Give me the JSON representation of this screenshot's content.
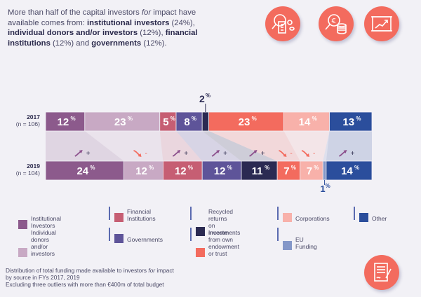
{
  "intro": {
    "parts": [
      {
        "text": "More than half of the capital investors ",
        "style": "normal"
      },
      {
        "text": "for",
        "style": "italic"
      },
      {
        "text": " impact have available comes from: ",
        "style": "normal"
      },
      {
        "text": "institutional investors",
        "style": "bold"
      },
      {
        "text": " (24%), ",
        "style": "normal"
      },
      {
        "text": "individual donors and/or investors",
        "style": "bold"
      },
      {
        "text": " (12%), ",
        "style": "normal"
      },
      {
        "text": "financial institutions",
        "style": "bold"
      },
      {
        "text": " (12%) and ",
        "style": "normal"
      },
      {
        "text": "governments",
        "style": "bold"
      },
      {
        "text": " (12%).",
        "style": "normal"
      }
    ]
  },
  "icons": [
    "magnifier-building-icon",
    "euro-coins-magnifier-icon",
    "chart-growth-board-icon",
    "signed-document-icon"
  ],
  "colors": {
    "background": "#f2f1f6",
    "accent": "#f36b5e",
    "up_arrow": "#8b4f8c",
    "down_arrow": "#f36b5e"
  },
  "chart_data": {
    "type": "bar",
    "orientation": "horizontal-stacked-100",
    "title": "",
    "rows": [
      {
        "label": "2017",
        "sublabel": "(n = 106)"
      },
      {
        "label": "2019",
        "sublabel": "(n = 104)"
      }
    ],
    "series": [
      {
        "name": "Institutional Investors",
        "color": "#8c5a8c",
        "values": [
          12,
          24
        ],
        "change": "+"
      },
      {
        "name": "Individual donors and/or investors",
        "color": "#c8a9c4",
        "values": [
          23,
          12
        ],
        "change": "-"
      },
      {
        "name": "Financial Institutions",
        "color": "#c65e73",
        "values": [
          5,
          12
        ],
        "change": "+"
      },
      {
        "name": "Governments",
        "color": "#5e5499",
        "values": [
          8,
          12
        ],
        "change": "+"
      },
      {
        "name": "Recycled returns on investments",
        "color": "#2b2a52",
        "values": [
          2,
          11
        ],
        "change": "+"
      },
      {
        "name": "Income from own endowment or trust",
        "color": "#f36b5e",
        "values": [
          23,
          7
        ],
        "change": "-"
      },
      {
        "name": "Corporations",
        "color": "#f8b1aa",
        "values": [
          14,
          7
        ],
        "change": "-"
      },
      {
        "name": "EU Funding",
        "color": "#8497c8",
        "values": [
          0,
          1
        ],
        "change": ""
      },
      {
        "name": "Other",
        "color": "#2b4e9c",
        "values": [
          13,
          14
        ],
        "change": "+"
      }
    ],
    "value_suffix": "%",
    "callouts": [
      {
        "row": "2017",
        "series": "Recycled returns on investments",
        "label": "2",
        "position": "above"
      },
      {
        "row": "2019",
        "series": "EU Funding",
        "label": "1",
        "position": "below"
      }
    ]
  },
  "legend": {
    "items": [
      {
        "label_lines": [
          "Institutional Investors"
        ],
        "color": "#8c5a8c"
      },
      {
        "label_lines": [
          "Financial",
          "Institutions"
        ],
        "color": "#c65e73"
      },
      {
        "label_lines": [
          "Recycled returns",
          "on investments"
        ],
        "color": "#2b2a52"
      },
      {
        "label_lines": [
          "Corporations"
        ],
        "color": "#f8b1aa"
      },
      {
        "label_lines": [
          "Other"
        ],
        "color": "#2b4e9c"
      },
      {
        "label_lines": [
          "Individual donors and/or",
          "investors"
        ],
        "color": "#c8a9c4"
      },
      {
        "label_lines": [
          "Governments"
        ],
        "color": "#5e5499"
      },
      {
        "label_lines": [
          "Income from own",
          "endowment or trust"
        ],
        "color": "#f36b5e"
      },
      {
        "label_lines": [
          "EU Funding"
        ],
        "color": "#8497c8"
      }
    ]
  },
  "footnote": {
    "line1_parts": [
      {
        "text": "Distribution of total funding made available to investors ",
        "style": "normal"
      },
      {
        "text": "for",
        "style": "italic"
      },
      {
        "text": " impact",
        "style": "normal"
      }
    ],
    "line2": "by source in FYs 2017, 2019",
    "line3": "Excluding three outliers with more than €400m of total budget"
  }
}
